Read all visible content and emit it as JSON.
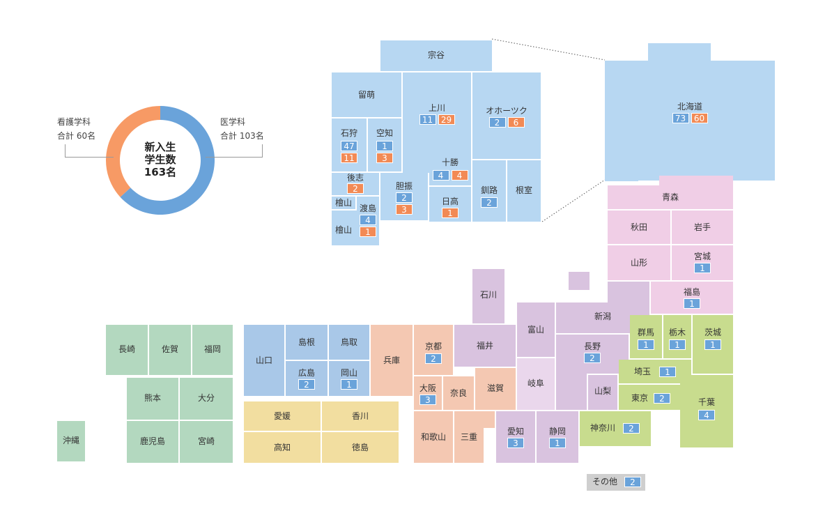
{
  "summary": {
    "center": [
      "新入生",
      "学生数",
      "163名"
    ],
    "nursing": {
      "label": "看護学科",
      "total": "合計 60名",
      "value": 60
    },
    "medicine": {
      "label": "医学科",
      "total": "合計 103名",
      "value": 103
    }
  },
  "colors": {
    "medical_chip": "#6aa3da",
    "nursing_chip": "#f28a55",
    "hokkaido": "#b7d7f2",
    "tohoku": "#f0cee6",
    "kanto": "#c8dc8e",
    "chubu": "#d9c3df",
    "kinki": "#f4c8b2",
    "chugoku": "#a9c8e8",
    "shikoku": "#f2dea0",
    "kyushu": "#b3d8bf",
    "other": "#cfcfcf"
  },
  "hokkaido_regions": [
    {
      "name": "宗谷",
      "medicine": null,
      "nursing": null
    },
    {
      "name": "留萌",
      "medicine": null,
      "nursing": null
    },
    {
      "name": "上川",
      "medicine": "11",
      "nursing": "29"
    },
    {
      "name": "オホーツク",
      "medicine": "2",
      "nursing": "6"
    },
    {
      "name": "石狩",
      "medicine": "47",
      "nursing": "11"
    },
    {
      "name": "空知",
      "medicine": "1",
      "nursing": "3"
    },
    {
      "name": "十勝",
      "medicine": "4",
      "nursing": "4"
    },
    {
      "name": "後志",
      "medicine": null,
      "nursing": "2"
    },
    {
      "name": "胆振",
      "medicine": "2",
      "nursing": "3"
    },
    {
      "name": "釧路",
      "medicine": "2",
      "nursing": null
    },
    {
      "name": "根室",
      "medicine": null,
      "nursing": null
    },
    {
      "name": "日高",
      "medicine": null,
      "nursing": "1"
    },
    {
      "name": "檜山",
      "medicine": null,
      "nursing": null
    },
    {
      "name": "渡島",
      "medicine": "4",
      "nursing": "1"
    },
    {
      "name": "檜山",
      "medicine": null,
      "nursing": null
    }
  ],
  "prefectures": [
    {
      "name": "北海道",
      "medicine": "73",
      "nursing": "60"
    },
    {
      "name": "青森",
      "medicine": null,
      "nursing": null
    },
    {
      "name": "秋田",
      "medicine": null,
      "nursing": null
    },
    {
      "name": "岩手",
      "medicine": null,
      "nursing": null
    },
    {
      "name": "山形",
      "medicine": null,
      "nursing": null
    },
    {
      "name": "宮城",
      "medicine": "1",
      "nursing": null
    },
    {
      "name": "福島",
      "medicine": "1",
      "nursing": null
    },
    {
      "name": "新潟",
      "medicine": null,
      "nursing": null
    },
    {
      "name": "石川",
      "medicine": null,
      "nursing": null
    },
    {
      "name": "富山",
      "medicine": null,
      "nursing": null
    },
    {
      "name": "福井",
      "medicine": null,
      "nursing": null
    },
    {
      "name": "長野",
      "medicine": "2",
      "nursing": null
    },
    {
      "name": "岐阜",
      "medicine": null,
      "nursing": null
    },
    {
      "name": "山梨",
      "medicine": null,
      "nursing": null
    },
    {
      "name": "愛知",
      "medicine": "3",
      "nursing": null
    },
    {
      "name": "静岡",
      "medicine": "1",
      "nursing": null
    },
    {
      "name": "群馬",
      "medicine": "1",
      "nursing": null
    },
    {
      "name": "栃木",
      "medicine": "1",
      "nursing": null
    },
    {
      "name": "茨城",
      "medicine": "1",
      "nursing": null
    },
    {
      "name": "埼玉",
      "medicine": "1",
      "nursing": null
    },
    {
      "name": "東京",
      "medicine": "2",
      "nursing": null
    },
    {
      "name": "千葉",
      "medicine": "4",
      "nursing": null
    },
    {
      "name": "神奈川",
      "medicine": "2",
      "nursing": null
    },
    {
      "name": "京都",
      "medicine": "2",
      "nursing": null
    },
    {
      "name": "兵庫",
      "medicine": null,
      "nursing": null
    },
    {
      "name": "大阪",
      "medicine": "3",
      "nursing": null
    },
    {
      "name": "奈良",
      "medicine": null,
      "nursing": null
    },
    {
      "name": "滋賀",
      "medicine": null,
      "nursing": null
    },
    {
      "name": "和歌山",
      "medicine": null,
      "nursing": null
    },
    {
      "name": "三重",
      "medicine": null,
      "nursing": null
    },
    {
      "name": "山口",
      "medicine": null,
      "nursing": null
    },
    {
      "name": "島根",
      "medicine": null,
      "nursing": null
    },
    {
      "name": "鳥取",
      "medicine": null,
      "nursing": null
    },
    {
      "name": "広島",
      "medicine": "2",
      "nursing": null
    },
    {
      "name": "岡山",
      "medicine": "1",
      "nursing": null
    },
    {
      "name": "愛媛",
      "medicine": null,
      "nursing": null
    },
    {
      "name": "香川",
      "medicine": null,
      "nursing": null
    },
    {
      "name": "高知",
      "medicine": null,
      "nursing": null
    },
    {
      "name": "徳島",
      "medicine": null,
      "nursing": null
    },
    {
      "name": "長崎",
      "medicine": null,
      "nursing": null
    },
    {
      "name": "佐賀",
      "medicine": null,
      "nursing": null
    },
    {
      "name": "福岡",
      "medicine": null,
      "nursing": null
    },
    {
      "name": "熊本",
      "medicine": null,
      "nursing": null
    },
    {
      "name": "大分",
      "medicine": null,
      "nursing": null
    },
    {
      "name": "鹿児島",
      "medicine": null,
      "nursing": null
    },
    {
      "name": "宮崎",
      "medicine": null,
      "nursing": null
    },
    {
      "name": "沖縄",
      "medicine": null,
      "nursing": null
    },
    {
      "name": "その他",
      "medicine": "2",
      "nursing": null
    }
  ]
}
